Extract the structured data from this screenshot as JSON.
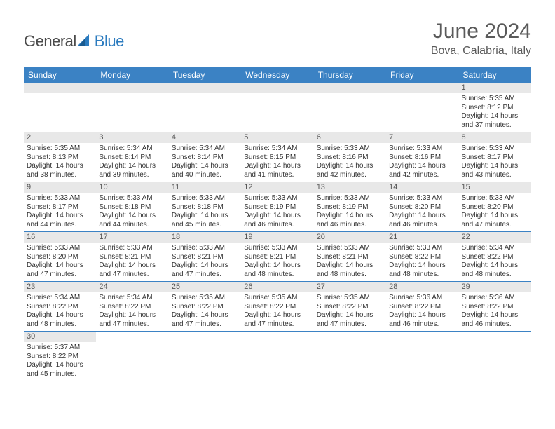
{
  "brand": {
    "part1": "General",
    "part2": "Blue"
  },
  "title": "June 2024",
  "location": "Bova, Calabria, Italy",
  "colors": {
    "header_bg": "#3b82c4",
    "header_text": "#ffffff",
    "daynum_bg": "#e8e8e8",
    "border": "#3b82c4",
    "text": "#333333",
    "title_text": "#5a5a5a"
  },
  "day_headers": [
    "Sunday",
    "Monday",
    "Tuesday",
    "Wednesday",
    "Thursday",
    "Friday",
    "Saturday"
  ],
  "weeks": [
    [
      {
        "n": "",
        "sr": "",
        "ss": "",
        "dl": ""
      },
      {
        "n": "",
        "sr": "",
        "ss": "",
        "dl": ""
      },
      {
        "n": "",
        "sr": "",
        "ss": "",
        "dl": ""
      },
      {
        "n": "",
        "sr": "",
        "ss": "",
        "dl": ""
      },
      {
        "n": "",
        "sr": "",
        "ss": "",
        "dl": ""
      },
      {
        "n": "",
        "sr": "",
        "ss": "",
        "dl": ""
      },
      {
        "n": "1",
        "sr": "5:35 AM",
        "ss": "8:12 PM",
        "dl": "14 hours and 37 minutes."
      }
    ],
    [
      {
        "n": "2",
        "sr": "5:35 AM",
        "ss": "8:13 PM",
        "dl": "14 hours and 38 minutes."
      },
      {
        "n": "3",
        "sr": "5:34 AM",
        "ss": "8:14 PM",
        "dl": "14 hours and 39 minutes."
      },
      {
        "n": "4",
        "sr": "5:34 AM",
        "ss": "8:14 PM",
        "dl": "14 hours and 40 minutes."
      },
      {
        "n": "5",
        "sr": "5:34 AM",
        "ss": "8:15 PM",
        "dl": "14 hours and 41 minutes."
      },
      {
        "n": "6",
        "sr": "5:33 AM",
        "ss": "8:16 PM",
        "dl": "14 hours and 42 minutes."
      },
      {
        "n": "7",
        "sr": "5:33 AM",
        "ss": "8:16 PM",
        "dl": "14 hours and 42 minutes."
      },
      {
        "n": "8",
        "sr": "5:33 AM",
        "ss": "8:17 PM",
        "dl": "14 hours and 43 minutes."
      }
    ],
    [
      {
        "n": "9",
        "sr": "5:33 AM",
        "ss": "8:17 PM",
        "dl": "14 hours and 44 minutes."
      },
      {
        "n": "10",
        "sr": "5:33 AM",
        "ss": "8:18 PM",
        "dl": "14 hours and 44 minutes."
      },
      {
        "n": "11",
        "sr": "5:33 AM",
        "ss": "8:18 PM",
        "dl": "14 hours and 45 minutes."
      },
      {
        "n": "12",
        "sr": "5:33 AM",
        "ss": "8:19 PM",
        "dl": "14 hours and 46 minutes."
      },
      {
        "n": "13",
        "sr": "5:33 AM",
        "ss": "8:19 PM",
        "dl": "14 hours and 46 minutes."
      },
      {
        "n": "14",
        "sr": "5:33 AM",
        "ss": "8:20 PM",
        "dl": "14 hours and 46 minutes."
      },
      {
        "n": "15",
        "sr": "5:33 AM",
        "ss": "8:20 PM",
        "dl": "14 hours and 47 minutes."
      }
    ],
    [
      {
        "n": "16",
        "sr": "5:33 AM",
        "ss": "8:20 PM",
        "dl": "14 hours and 47 minutes."
      },
      {
        "n": "17",
        "sr": "5:33 AM",
        "ss": "8:21 PM",
        "dl": "14 hours and 47 minutes."
      },
      {
        "n": "18",
        "sr": "5:33 AM",
        "ss": "8:21 PM",
        "dl": "14 hours and 47 minutes."
      },
      {
        "n": "19",
        "sr": "5:33 AM",
        "ss": "8:21 PM",
        "dl": "14 hours and 48 minutes."
      },
      {
        "n": "20",
        "sr": "5:33 AM",
        "ss": "8:21 PM",
        "dl": "14 hours and 48 minutes."
      },
      {
        "n": "21",
        "sr": "5:33 AM",
        "ss": "8:22 PM",
        "dl": "14 hours and 48 minutes."
      },
      {
        "n": "22",
        "sr": "5:34 AM",
        "ss": "8:22 PM",
        "dl": "14 hours and 48 minutes."
      }
    ],
    [
      {
        "n": "23",
        "sr": "5:34 AM",
        "ss": "8:22 PM",
        "dl": "14 hours and 48 minutes."
      },
      {
        "n": "24",
        "sr": "5:34 AM",
        "ss": "8:22 PM",
        "dl": "14 hours and 47 minutes."
      },
      {
        "n": "25",
        "sr": "5:35 AM",
        "ss": "8:22 PM",
        "dl": "14 hours and 47 minutes."
      },
      {
        "n": "26",
        "sr": "5:35 AM",
        "ss": "8:22 PM",
        "dl": "14 hours and 47 minutes."
      },
      {
        "n": "27",
        "sr": "5:35 AM",
        "ss": "8:22 PM",
        "dl": "14 hours and 47 minutes."
      },
      {
        "n": "28",
        "sr": "5:36 AM",
        "ss": "8:22 PM",
        "dl": "14 hours and 46 minutes."
      },
      {
        "n": "29",
        "sr": "5:36 AM",
        "ss": "8:22 PM",
        "dl": "14 hours and 46 minutes."
      }
    ],
    [
      {
        "n": "30",
        "sr": "5:37 AM",
        "ss": "8:22 PM",
        "dl": "14 hours and 45 minutes."
      },
      {
        "n": "",
        "sr": "",
        "ss": "",
        "dl": ""
      },
      {
        "n": "",
        "sr": "",
        "ss": "",
        "dl": ""
      },
      {
        "n": "",
        "sr": "",
        "ss": "",
        "dl": ""
      },
      {
        "n": "",
        "sr": "",
        "ss": "",
        "dl": ""
      },
      {
        "n": "",
        "sr": "",
        "ss": "",
        "dl": ""
      },
      {
        "n": "",
        "sr": "",
        "ss": "",
        "dl": ""
      }
    ]
  ],
  "labels": {
    "sunrise": "Sunrise: ",
    "sunset": "Sunset: ",
    "daylight": "Daylight: "
  }
}
